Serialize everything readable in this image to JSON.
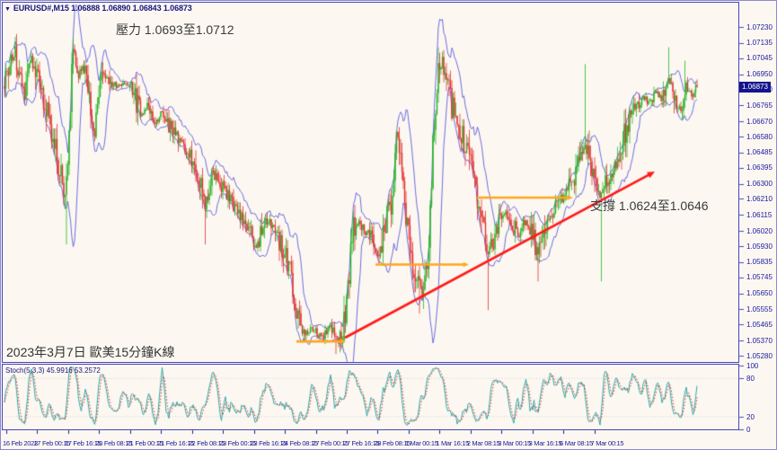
{
  "window": {
    "symbol": "EURUSD#,M15",
    "quotes": "1.06888 1.06890 1.06843 1.06873",
    "dropdown_icon": "▼"
  },
  "annotations": {
    "resistance": "壓力 1.0693至1.0712",
    "support": "支撐 1.0624至1.0646",
    "caption": "2023年3月7日 歐美15分鐘K線"
  },
  "price_axis": {
    "labels": [
      "1.07230",
      "1.07135",
      "1.07045",
      "1.06950",
      "1.06860",
      "1.06765",
      "1.06670",
      "1.06580",
      "1.06485",
      "1.06395",
      "1.06300",
      "1.06210",
      "1.06115",
      "1.06020",
      "1.05930",
      "1.05835",
      "1.05745",
      "1.05650",
      "1.05555",
      "1.05465",
      "1.05370",
      "1.05280"
    ],
    "current": "1.06873"
  },
  "time_axis": {
    "labels": [
      "16 Feb 2023",
      "17 Feb 00:15",
      "17 Feb 16:15",
      "20 Feb 08:15",
      "21 Feb 00:15",
      "21 Feb 16:15",
      "22 Feb 08:15",
      "23 Feb 00:15",
      "23 Feb 16:15",
      "24 Feb 08:15",
      "27 Feb 00:15",
      "27 Feb 16:15",
      "28 Feb 08:15",
      "1 Mar 00:15",
      "1 Mar 16:15",
      "2 Mar 08:15",
      "3 Mar 00:15",
      "3 Mar 16:15",
      "6 Mar 08:15",
      "7 Mar 00:15"
    ]
  },
  "stoch": {
    "label": "Stoch(5,3,3) 45.9916 53.2572",
    "axis_labels": [
      "100",
      "80",
      "20",
      "0"
    ],
    "axis_values": [
      100,
      80,
      20,
      0
    ],
    "grid_values": [
      80,
      20
    ],
    "k_value": 45.9916,
    "d_value": 53.2572
  },
  "colors": {
    "background": "#fcf8f1",
    "panel_border": "#4646be",
    "axis_text": "#1a1a9e",
    "candle_up": "#26b226",
    "candle_down": "#e03030",
    "bollinger": "#5c5ce0",
    "stoch_k": "#2aa8a8",
    "stoch_d": "#d03030",
    "stoch_grid": "#c4c4c4",
    "trendline": "#ff1a1a",
    "arrow": "#ffa520",
    "badge_bg": "#14148c",
    "annotation_text": "#3c3c3c"
  },
  "chart_data": {
    "type": "candlestick",
    "title": "EURUSD# M15 with Bollinger Bands and Stochastic(5,3,3)",
    "ylim": [
      1.05243,
      1.07374
    ],
    "resistance_zone": [
      1.0693,
      1.0712
    ],
    "support_zone": [
      1.0624,
      1.0646
    ],
    "price_path": [
      [
        4,
        1.06878
      ],
      [
        10,
        1.07012
      ],
      [
        16,
        1.07065
      ],
      [
        22,
        1.06878
      ],
      [
        26,
        1.06825
      ],
      [
        32,
        1.07065
      ],
      [
        38,
        1.06985
      ],
      [
        48,
        1.06798
      ],
      [
        58,
        1.06585
      ],
      [
        66,
        1.06372
      ],
      [
        72,
        1.06186
      ],
      [
        77,
        1.06745
      ],
      [
        80,
        1.07065
      ],
      [
        86,
        1.06958
      ],
      [
        92,
        1.06985
      ],
      [
        98,
        1.06878
      ],
      [
        104,
        1.06585
      ],
      [
        112,
        1.06985
      ],
      [
        120,
        1.06905
      ],
      [
        130,
        1.06878
      ],
      [
        140,
        1.06894
      ],
      [
        148,
        1.06852
      ],
      [
        156,
        1.06703
      ],
      [
        163,
        1.06761
      ],
      [
        170,
        1.06639
      ],
      [
        177,
        1.06729
      ],
      [
        188,
        1.06639
      ],
      [
        200,
        1.06532
      ],
      [
        212,
        1.06468
      ],
      [
        222,
        1.06319
      ],
      [
        228,
        1.06133
      ],
      [
        234,
        1.06372
      ],
      [
        242,
        1.06319
      ],
      [
        255,
        1.06202
      ],
      [
        268,
        1.06106
      ],
      [
        278,
        1.06026
      ],
      [
        285,
        1.0592
      ],
      [
        295,
        1.06079
      ],
      [
        303,
        1.06053
      ],
      [
        312,
        1.05946
      ],
      [
        322,
        1.05786
      ],
      [
        330,
        1.05493
      ],
      [
        340,
        1.05413
      ],
      [
        350,
        1.0544
      ],
      [
        358,
        1.05387
      ],
      [
        366,
        1.05456
      ],
      [
        374,
        1.05371
      ],
      [
        380,
        1.05413
      ],
      [
        386,
        1.05626
      ],
      [
        392,
        1.06053
      ],
      [
        398,
        1.06079
      ],
      [
        406,
        1.06026
      ],
      [
        414,
        1.05989
      ],
      [
        420,
        1.05856
      ],
      [
        428,
        1.06053
      ],
      [
        436,
        1.06213
      ],
      [
        441,
        1.06585
      ],
      [
        446,
        1.06399
      ],
      [
        452,
        1.06079
      ],
      [
        458,
        1.05786
      ],
      [
        466,
        1.05733
      ],
      [
        470,
        1.05627
      ],
      [
        476,
        1.05893
      ],
      [
        481,
        1.06532
      ],
      [
        486,
        1.06958
      ],
      [
        491,
        1.07022
      ],
      [
        497,
        1.06878
      ],
      [
        503,
        1.06745
      ],
      [
        509,
        1.06665
      ],
      [
        516,
        1.06559
      ],
      [
        523,
        1.0641
      ],
      [
        530,
        1.06186
      ],
      [
        537,
        1.06026
      ],
      [
        543,
        1.05893
      ],
      [
        549,
        1.05999
      ],
      [
        556,
        1.06106
      ],
      [
        563,
        1.06133
      ],
      [
        570,
        1.06063
      ],
      [
        577,
        1.05999
      ],
      [
        584,
        1.06079
      ],
      [
        591,
        1.06026
      ],
      [
        598,
        1.05866
      ],
      [
        605,
        1.06053
      ],
      [
        612,
        1.06106
      ],
      [
        620,
        1.06202
      ],
      [
        628,
        1.06239
      ],
      [
        636,
        1.06319
      ],
      [
        643,
        1.06399
      ],
      [
        650,
        1.06532
      ],
      [
        656,
        1.06426
      ],
      [
        662,
        1.06292
      ],
      [
        668,
        1.06213
      ],
      [
        674,
        1.06319
      ],
      [
        680,
        1.06372
      ],
      [
        687,
        1.06452
      ],
      [
        694,
        1.06585
      ],
      [
        701,
        1.06719
      ],
      [
        708,
        1.06745
      ],
      [
        715,
        1.06825
      ],
      [
        722,
        1.06772
      ],
      [
        729,
        1.06852
      ],
      [
        736,
        1.06798
      ],
      [
        743,
        1.06931
      ],
      [
        750,
        1.06825
      ],
      [
        757,
        1.06745
      ],
      [
        764,
        1.06878
      ],
      [
        770,
        1.06825
      ],
      [
        775,
        1.06873
      ]
    ],
    "wick_spikes": [
      {
        "x": 73,
        "p": 1.0594,
        "side": "low"
      },
      {
        "x": 228,
        "p": 1.0594,
        "side": "low"
      },
      {
        "x": 373,
        "p": 1.0529,
        "side": "low"
      },
      {
        "x": 466,
        "p": 1.0553,
        "side": "low"
      },
      {
        "x": 491,
        "p": 1.0706,
        "side": "high"
      },
      {
        "x": 543,
        "p": 1.0555,
        "side": "low"
      },
      {
        "x": 598,
        "p": 1.0572,
        "side": "low"
      },
      {
        "x": 651,
        "p": 1.0701,
        "side": "high"
      },
      {
        "x": 668,
        "p": 1.0572,
        "side": "low"
      },
      {
        "x": 743,
        "p": 1.0711,
        "side": "high"
      },
      {
        "x": 762,
        "p": 1.0703,
        "side": "high"
      }
    ],
    "support_trendline": {
      "x1": 383,
      "p1": 1.05387,
      "x2": 728,
      "p2": 1.06372
    },
    "level_arrows": [
      {
        "x1": 329,
        "x2": 384,
        "p": 1.05365
      },
      {
        "x1": 417,
        "x2": 521,
        "p": 1.05821
      },
      {
        "x1": 530,
        "x2": 637,
        "p": 1.06218
      }
    ],
    "indicators": [
      "Bollinger Bands",
      "Stochastic(5,3,3)"
    ]
  }
}
